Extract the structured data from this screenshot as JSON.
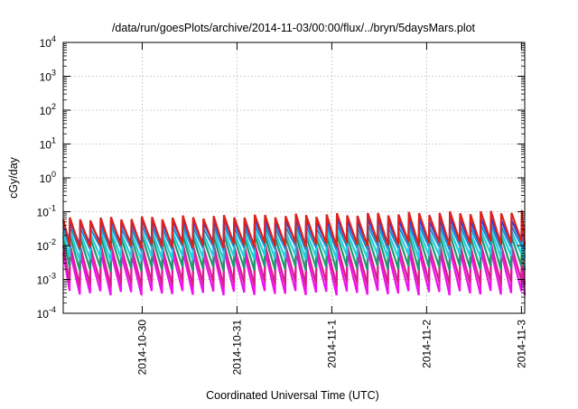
{
  "chart_data": {
    "type": "line",
    "title": "/data/run/goesPlots/archive/2014-11-03/00:00/flux/../bryn/5daysMars.plot",
    "xlabel": "Coordinated Universal Time (UTC)",
    "ylabel": "cGy/day",
    "y_scale": "log",
    "ylim": [
      0.0001,
      10000
    ],
    "xlim": [
      "2014-10-29T04:00",
      "2014-11-03T00:50"
    ],
    "grid": true,
    "legend": "none",
    "y_ticks": [
      {
        "base": "10",
        "exp": "-4",
        "value": 0.0001
      },
      {
        "base": "10",
        "exp": "-3",
        "value": 0.001
      },
      {
        "base": "10",
        "exp": "-2",
        "value": 0.01
      },
      {
        "base": "10",
        "exp": "-1",
        "value": 0.1
      },
      {
        "base": "10",
        "exp": "0",
        "value": 1
      },
      {
        "base": "10",
        "exp": "1",
        "value": 10
      },
      {
        "base": "10",
        "exp": "2",
        "value": 100
      },
      {
        "base": "10",
        "exp": "3",
        "value": 1000
      },
      {
        "base": "10",
        "exp": "4",
        "value": 10000
      }
    ],
    "x_ticks": [
      {
        "label": "2014-10-30",
        "value": "2014-10-30T00:00"
      },
      {
        "label": "2014-10-31",
        "value": "2014-10-31T00:00"
      },
      {
        "label": "2014-11-1",
        "value": "2014-11-01T00:00"
      },
      {
        "label": "2014-11-2",
        "value": "2014-11-02T00:00"
      },
      {
        "label": "2014-11-3",
        "value": "2014-11-03T00:00"
      }
    ],
    "pattern": {
      "shape": "sawtooth",
      "cycles": 45,
      "period_hours": 2.6,
      "description_free": true
    },
    "series": [
      {
        "color": "#e0201c",
        "peak": 0.06,
        "trough": 0.009,
        "peak_end": 0.1,
        "trough_end": 0.012
      },
      {
        "color": "#2244ee",
        "peak": 0.05,
        "trough": 0.011,
        "peak_end": 0.06,
        "trough_end": 0.012
      },
      {
        "color": "#1a8fd0",
        "peak": 0.035,
        "trough": 0.008,
        "peak_end": 0.04,
        "trough_end": 0.009
      },
      {
        "color": "#22cfe0",
        "peak": 0.025,
        "trough": 0.004,
        "peak_end": 0.028,
        "trough_end": 0.005
      },
      {
        "color": "#1d9a6e",
        "peak": 0.018,
        "trough": 0.002,
        "peak_end": 0.02,
        "trough_end": 0.0022
      },
      {
        "color": "#d81e8a",
        "peak": 0.01,
        "trough": 0.0007,
        "peak_end": 0.011,
        "trough_end": 0.0008
      },
      {
        "color": "#ee11ee",
        "peak": 0.006,
        "trough": 0.0004,
        "peak_end": 0.007,
        "trough_end": 0.0004
      }
    ]
  }
}
